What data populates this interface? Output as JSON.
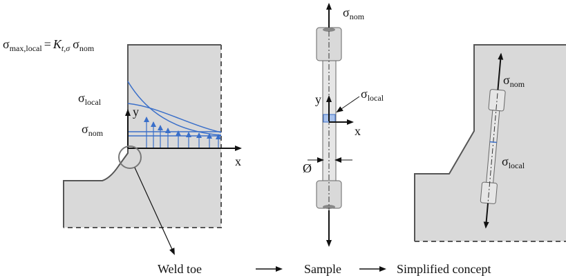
{
  "left_panel": {
    "formula": {
      "lhs": "σ",
      "lhs_sub": "max,local",
      "eq": "=",
      "k": "K",
      "k_sub": "t,σ",
      "rhs": "σ",
      "rhs_sub": "nom"
    },
    "local_label": {
      "symbol": "σ",
      "sub": "local"
    },
    "nom_label": {
      "symbol": "σ",
      "sub": "nom"
    },
    "y_axis": "y",
    "x_axis": "x"
  },
  "middle_panel": {
    "top_label": {
      "symbol": "σ",
      "sub": "nom"
    },
    "local_label": {
      "symbol": "σ",
      "sub": "local"
    },
    "y_axis": "y",
    "x_axis": "x",
    "diameter": "Ø"
  },
  "right_panel": {
    "nom_label": {
      "symbol": "σ",
      "sub": "nom"
    },
    "local_label": {
      "symbol": "σ",
      "sub": "local"
    }
  },
  "flow": [
    "Weld toe",
    "Sample",
    "Simplified concept"
  ]
}
